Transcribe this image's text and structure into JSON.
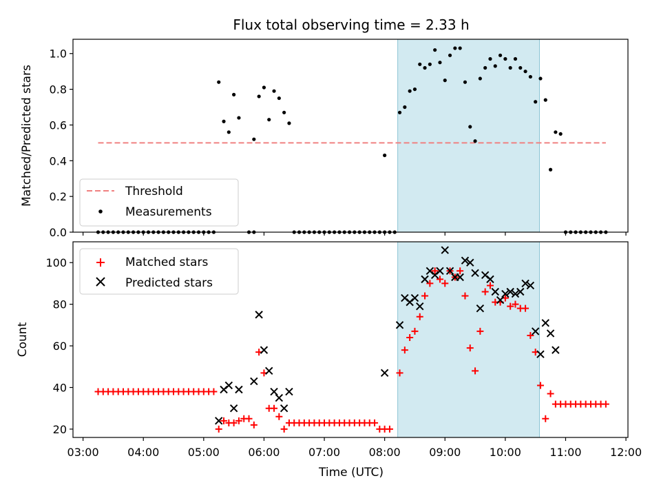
{
  "figure": {
    "title": "Flux total observing time = 2.33 h",
    "highlight_span_x": [
      "08:13",
      "10:34"
    ],
    "highlight_color": "#add8e6"
  },
  "chart_data": [
    {
      "type": "scatter",
      "ylabel": "Matched/Predicted stars",
      "ylim": [
        0,
        1.08
      ],
      "yticks": [
        "0.0",
        "0.2",
        "0.4",
        "0.6",
        "0.8",
        "1.0"
      ],
      "legend_position": "lower-left",
      "legend": [
        "Threshold",
        "Measurements"
      ],
      "threshold": {
        "name": "Threshold",
        "value": 0.5,
        "x": [
          "03:15",
          "11:40"
        ],
        "color": "#f08080",
        "style": "dashed"
      },
      "series": [
        {
          "name": "Measurements",
          "color": "#000000",
          "marker": "dot",
          "points": [
            [
              "03:15",
              0
            ],
            [
              "03:20",
              0
            ],
            [
              "03:25",
              0
            ],
            [
              "03:30",
              0
            ],
            [
              "03:35",
              0
            ],
            [
              "03:40",
              0
            ],
            [
              "03:45",
              0
            ],
            [
              "03:50",
              0
            ],
            [
              "03:55",
              0
            ],
            [
              "04:00",
              0
            ],
            [
              "04:05",
              0
            ],
            [
              "04:10",
              0
            ],
            [
              "04:15",
              0
            ],
            [
              "04:20",
              0
            ],
            [
              "04:25",
              0
            ],
            [
              "04:30",
              0
            ],
            [
              "04:35",
              0
            ],
            [
              "04:40",
              0
            ],
            [
              "04:45",
              0
            ],
            [
              "04:50",
              0
            ],
            [
              "04:55",
              0
            ],
            [
              "05:00",
              0
            ],
            [
              "05:05",
              0
            ],
            [
              "05:10",
              0
            ],
            [
              "05:15",
              0.84
            ],
            [
              "05:20",
              0.62
            ],
            [
              "05:25",
              0.56
            ],
            [
              "05:30",
              0.77
            ],
            [
              "05:35",
              0.64
            ],
            [
              "05:45",
              0
            ],
            [
              "05:50",
              0
            ],
            [
              "05:50",
              0.52
            ],
            [
              "05:55",
              0.76
            ],
            [
              "06:00",
              0.81
            ],
            [
              "06:05",
              0.63
            ],
            [
              "06:10",
              0.79
            ],
            [
              "06:15",
              0.75
            ],
            [
              "06:20",
              0.67
            ],
            [
              "06:25",
              0.61
            ],
            [
              "06:30",
              0
            ],
            [
              "06:35",
              0
            ],
            [
              "06:40",
              0
            ],
            [
              "06:45",
              0
            ],
            [
              "06:50",
              0
            ],
            [
              "06:55",
              0
            ],
            [
              "07:00",
              0
            ],
            [
              "07:05",
              0
            ],
            [
              "07:10",
              0
            ],
            [
              "07:15",
              0
            ],
            [
              "07:20",
              0
            ],
            [
              "07:25",
              0
            ],
            [
              "07:30",
              0
            ],
            [
              "07:35",
              0
            ],
            [
              "07:40",
              0
            ],
            [
              "07:45",
              0
            ],
            [
              "07:50",
              0
            ],
            [
              "07:55",
              0
            ],
            [
              "08:00",
              0
            ],
            [
              "08:05",
              0
            ],
            [
              "08:10",
              0
            ],
            [
              "08:00",
              0.43
            ],
            [
              "08:15",
              0.67
            ],
            [
              "08:20",
              0.7
            ],
            [
              "08:25",
              0.79
            ],
            [
              "08:30",
              0.8
            ],
            [
              "08:35",
              0.94
            ],
            [
              "08:40",
              0.92
            ],
            [
              "08:45",
              0.94
            ],
            [
              "08:50",
              1.02
            ],
            [
              "08:55",
              0.95
            ],
            [
              "09:00",
              0.85
            ],
            [
              "09:05",
              0.99
            ],
            [
              "09:10",
              1.03
            ],
            [
              "09:15",
              1.03
            ],
            [
              "09:20",
              0.84
            ],
            [
              "09:25",
              0.59
            ],
            [
              "09:30",
              0.51
            ],
            [
              "09:35",
              0.86
            ],
            [
              "09:40",
              0.92
            ],
            [
              "09:45",
              0.97
            ],
            [
              "09:50",
              0.93
            ],
            [
              "09:55",
              0.99
            ],
            [
              "10:00",
              0.97
            ],
            [
              "10:05",
              0.92
            ],
            [
              "10:10",
              0.97
            ],
            [
              "10:15",
              0.92
            ],
            [
              "10:20",
              0.9
            ],
            [
              "10:25",
              0.87
            ],
            [
              "10:30",
              0.73
            ],
            [
              "10:35",
              0.86
            ],
            [
              "10:40",
              0.74
            ],
            [
              "10:45",
              0.35
            ],
            [
              "10:50",
              0.56
            ],
            [
              "10:55",
              0.55
            ],
            [
              "11:00",
              0
            ],
            [
              "11:05",
              0
            ],
            [
              "11:10",
              0
            ],
            [
              "11:15",
              0
            ],
            [
              "11:20",
              0
            ],
            [
              "11:25",
              0
            ],
            [
              "11:30",
              0
            ],
            [
              "11:35",
              0
            ],
            [
              "11:40",
              0
            ]
          ]
        }
      ]
    },
    {
      "type": "scatter",
      "xlabel": "Time (UTC)",
      "ylabel": "Count",
      "xlim": [
        "02:50",
        "12:02"
      ],
      "xticks": [
        "03:00",
        "04:00",
        "05:00",
        "06:00",
        "07:00",
        "08:00",
        "09:00",
        "10:00",
        "11:00",
        "12:00"
      ],
      "ylim": [
        16,
        110
      ],
      "yticks": [
        "20",
        "40",
        "60",
        "80",
        "100"
      ],
      "legend_position": "top-left",
      "legend": [
        "Matched stars",
        "Predicted stars"
      ],
      "series": [
        {
          "name": "Matched stars",
          "color": "#ff0000",
          "marker": "plus",
          "points": [
            [
              "03:15",
              38
            ],
            [
              "03:20",
              38
            ],
            [
              "03:25",
              38
            ],
            [
              "03:30",
              38
            ],
            [
              "03:35",
              38
            ],
            [
              "03:40",
              38
            ],
            [
              "03:45",
              38
            ],
            [
              "03:50",
              38
            ],
            [
              "03:55",
              38
            ],
            [
              "04:00",
              38
            ],
            [
              "04:05",
              38
            ],
            [
              "04:10",
              38
            ],
            [
              "04:15",
              38
            ],
            [
              "04:20",
              38
            ],
            [
              "04:25",
              38
            ],
            [
              "04:30",
              38
            ],
            [
              "04:35",
              38
            ],
            [
              "04:40",
              38
            ],
            [
              "04:45",
              38
            ],
            [
              "04:50",
              38
            ],
            [
              "04:55",
              38
            ],
            [
              "05:00",
              38
            ],
            [
              "05:05",
              38
            ],
            [
              "05:10",
              38
            ],
            [
              "05:15",
              20
            ],
            [
              "05:20",
              24
            ],
            [
              "05:25",
              23
            ],
            [
              "05:30",
              23
            ],
            [
              "05:35",
              24
            ],
            [
              "05:40",
              25
            ],
            [
              "05:45",
              25
            ],
            [
              "05:50",
              22
            ],
            [
              "05:55",
              57
            ],
            [
              "06:00",
              47
            ],
            [
              "06:05",
              30
            ],
            [
              "06:10",
              30
            ],
            [
              "06:15",
              26
            ],
            [
              "06:20",
              20
            ],
            [
              "06:25",
              23
            ],
            [
              "06:30",
              23
            ],
            [
              "06:35",
              23
            ],
            [
              "06:40",
              23
            ],
            [
              "06:45",
              23
            ],
            [
              "06:50",
              23
            ],
            [
              "06:55",
              23
            ],
            [
              "07:00",
              23
            ],
            [
              "07:05",
              23
            ],
            [
              "07:10",
              23
            ],
            [
              "07:15",
              23
            ],
            [
              "07:20",
              23
            ],
            [
              "07:25",
              23
            ],
            [
              "07:30",
              23
            ],
            [
              "07:35",
              23
            ],
            [
              "07:40",
              23
            ],
            [
              "07:45",
              23
            ],
            [
              "07:50",
              23
            ],
            [
              "07:55",
              20
            ],
            [
              "08:00",
              20
            ],
            [
              "08:05",
              20
            ],
            [
              "08:15",
              47
            ],
            [
              "08:20",
              58
            ],
            [
              "08:25",
              64
            ],
            [
              "08:30",
              67
            ],
            [
              "08:35",
              74
            ],
            [
              "08:40",
              84
            ],
            [
              "08:45",
              90
            ],
            [
              "08:50",
              96
            ],
            [
              "08:55",
              92
            ],
            [
              "09:00",
              90
            ],
            [
              "09:05",
              96
            ],
            [
              "09:10",
              93
            ],
            [
              "09:15",
              96
            ],
            [
              "09:20",
              84
            ],
            [
              "09:25",
              59
            ],
            [
              "09:30",
              48
            ],
            [
              "09:35",
              67
            ],
            [
              "09:40",
              86
            ],
            [
              "09:45",
              89
            ],
            [
              "09:50",
              81
            ],
            [
              "09:55",
              81
            ],
            [
              "10:00",
              83
            ],
            [
              "10:05",
              79
            ],
            [
              "10:10",
              80
            ],
            [
              "10:15",
              78
            ],
            [
              "10:20",
              78
            ],
            [
              "10:25",
              65
            ],
            [
              "10:30",
              57
            ],
            [
              "10:35",
              41
            ],
            [
              "10:40",
              25
            ],
            [
              "10:45",
              37
            ],
            [
              "10:50",
              32
            ],
            [
              "10:55",
              32
            ],
            [
              "11:00",
              32
            ],
            [
              "11:05",
              32
            ],
            [
              "11:10",
              32
            ],
            [
              "11:15",
              32
            ],
            [
              "11:20",
              32
            ],
            [
              "11:25",
              32
            ],
            [
              "11:30",
              32
            ],
            [
              "11:35",
              32
            ],
            [
              "11:40",
              32
            ]
          ]
        },
        {
          "name": "Predicted stars",
          "color": "#000000",
          "marker": "x",
          "points": [
            [
              "05:15",
              24
            ],
            [
              "05:20",
              39
            ],
            [
              "05:25",
              41
            ],
            [
              "05:30",
              30
            ],
            [
              "05:35",
              39
            ],
            [
              "05:50",
              43
            ],
            [
              "05:55",
              75
            ],
            [
              "06:00",
              58
            ],
            [
              "06:05",
              48
            ],
            [
              "06:10",
              38
            ],
            [
              "06:15",
              35
            ],
            [
              "06:20",
              30
            ],
            [
              "06:25",
              38
            ],
            [
              "08:00",
              47
            ],
            [
              "08:15",
              70
            ],
            [
              "08:20",
              83
            ],
            [
              "08:25",
              81
            ],
            [
              "08:30",
              83
            ],
            [
              "08:35",
              79
            ],
            [
              "08:40",
              92
            ],
            [
              "08:45",
              96
            ],
            [
              "08:50",
              94
            ],
            [
              "08:55",
              96
            ],
            [
              "09:00",
              106
            ],
            [
              "09:05",
              96
            ],
            [
              "09:10",
              93
            ],
            [
              "09:15",
              93
            ],
            [
              "09:20",
              101
            ],
            [
              "09:25",
              100
            ],
            [
              "09:30",
              95
            ],
            [
              "09:35",
              78
            ],
            [
              "09:40",
              94
            ],
            [
              "09:45",
              92
            ],
            [
              "09:50",
              86
            ],
            [
              "09:55",
              82
            ],
            [
              "10:00",
              85
            ],
            [
              "10:05",
              86
            ],
            [
              "10:10",
              85
            ],
            [
              "10:15",
              86
            ],
            [
              "10:20",
              90
            ],
            [
              "10:25",
              89
            ],
            [
              "10:30",
              67
            ],
            [
              "10:35",
              56
            ],
            [
              "10:40",
              71
            ],
            [
              "10:45",
              66
            ],
            [
              "10:50",
              58
            ]
          ]
        }
      ]
    }
  ]
}
